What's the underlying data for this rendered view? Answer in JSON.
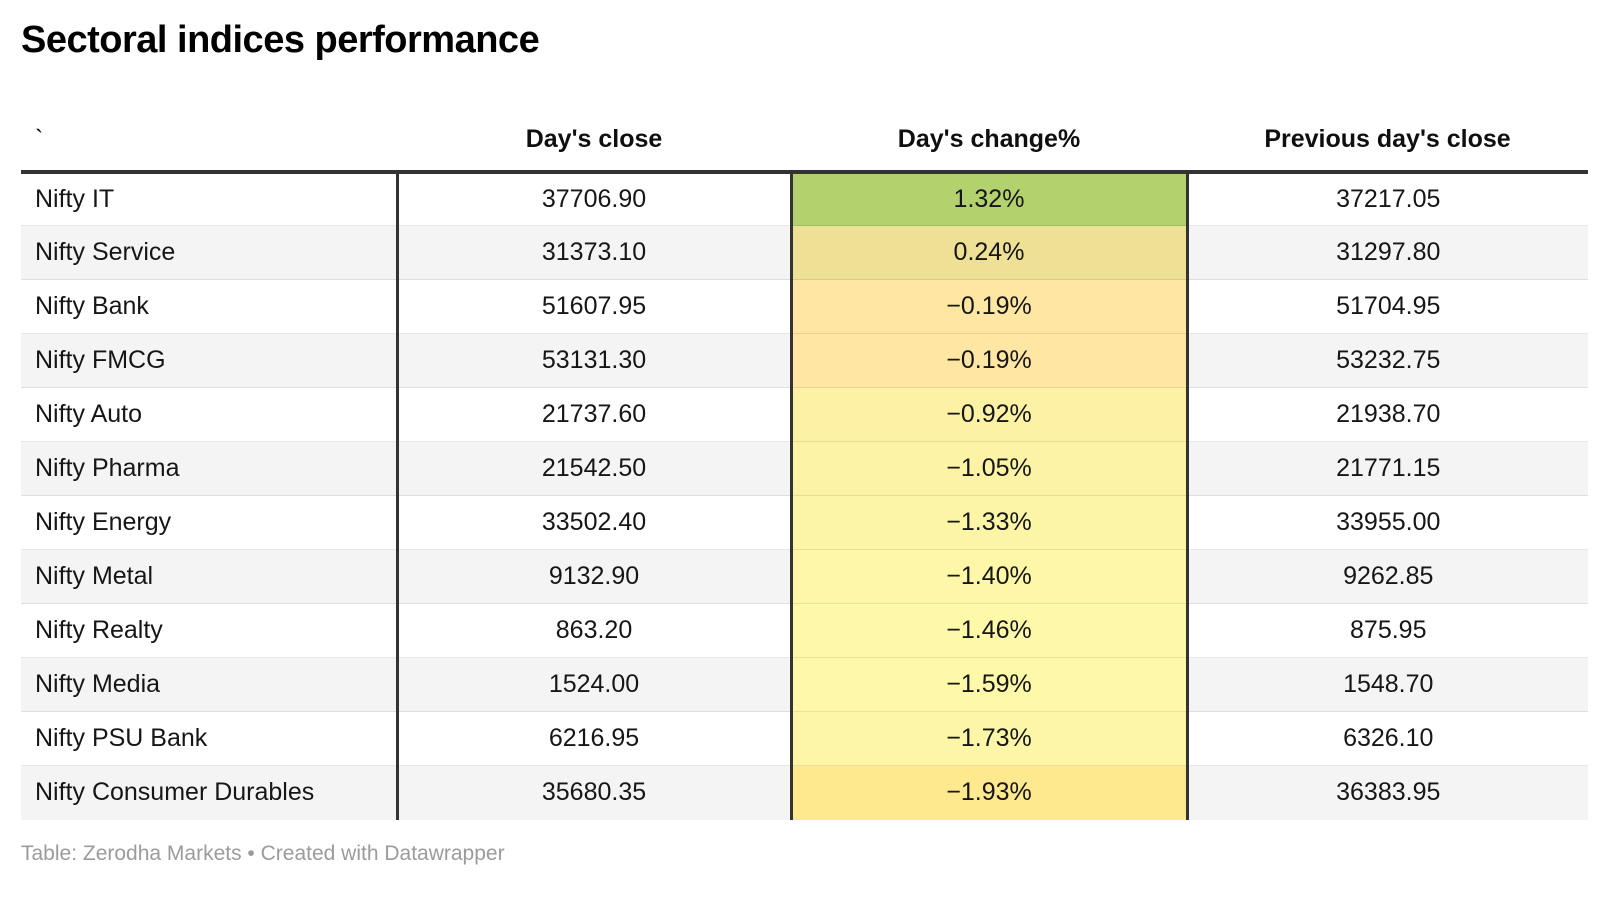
{
  "title": "Sectoral indices performance",
  "table": {
    "columns": {
      "name": "`",
      "close": "Day's close",
      "change": "Day's change%",
      "prev": "Previous day's close"
    },
    "rows": [
      {
        "name": "Nifty IT",
        "close": "37706.90",
        "change": "1.32%",
        "prev": "37217.05",
        "color": "#b3d16c"
      },
      {
        "name": "Nifty Service",
        "close": "31373.10",
        "change": "0.24%",
        "prev": "31297.80",
        "color": "#eee095"
      },
      {
        "name": "Nifty Bank",
        "close": "51607.95",
        "change": "−0.19%",
        "prev": "51704.95",
        "color": "#ffe6a2"
      },
      {
        "name": "Nifty FMCG",
        "close": "53131.30",
        "change": "−0.19%",
        "prev": "53232.75",
        "color": "#ffe6a2"
      },
      {
        "name": "Nifty Auto",
        "close": "21737.60",
        "change": "−0.92%",
        "prev": "21938.70",
        "color": "#fdf2a3"
      },
      {
        "name": "Nifty Pharma",
        "close": "21542.50",
        "change": "−1.05%",
        "prev": "21771.15",
        "color": "#fdf3a4"
      },
      {
        "name": "Nifty Energy",
        "close": "33502.40",
        "change": "−1.33%",
        "prev": "33955.00",
        "color": "#fdf5a6"
      },
      {
        "name": "Nifty Metal",
        "close": "9132.90",
        "change": "−1.40%",
        "prev": "9262.85",
        "color": "#fef7a8"
      },
      {
        "name": "Nifty Realty",
        "close": "863.20",
        "change": "−1.46%",
        "prev": "875.95",
        "color": "#fef8a9"
      },
      {
        "name": "Nifty Media",
        "close": "1524.00",
        "change": "−1.59%",
        "prev": "1548.70",
        "color": "#fef8a9"
      },
      {
        "name": "Nifty PSU Bank",
        "close": "6216.95",
        "change": "−1.73%",
        "prev": "6326.10",
        "color": "#fdf6a6"
      },
      {
        "name": "Nifty Consumer Durables",
        "close": "35680.35",
        "change": "−1.93%",
        "prev": "36383.95",
        "color": "#ffe98f"
      }
    ]
  },
  "footer": {
    "text": "Table: Zerodha Markets • Created with Datawrapper"
  },
  "chart_data": {
    "type": "table",
    "title": "Sectoral indices performance",
    "columns": [
      "`",
      "Day's close",
      "Day's change%",
      "Previous day's close"
    ],
    "rows": [
      [
        "Nifty IT",
        37706.9,
        1.32,
        37217.05
      ],
      [
        "Nifty Service",
        31373.1,
        0.24,
        31297.8
      ],
      [
        "Nifty Bank",
        51607.95,
        -0.19,
        51704.95
      ],
      [
        "Nifty FMCG",
        53131.3,
        -0.19,
        53232.75
      ],
      [
        "Nifty Auto",
        21737.6,
        -0.92,
        21938.7
      ],
      [
        "Nifty Pharma",
        21542.5,
        -1.05,
        21771.15
      ],
      [
        "Nifty Energy",
        33502.4,
        -1.33,
        33955.0
      ],
      [
        "Nifty Metal",
        9132.9,
        -1.4,
        9262.85
      ],
      [
        "Nifty Realty",
        863.2,
        -1.46,
        875.95
      ],
      [
        "Nifty Media",
        1524.0,
        -1.59,
        1548.7
      ],
      [
        "Nifty PSU Bank",
        6216.95,
        -1.73,
        6326.1
      ],
      [
        "Nifty Consumer Durables",
        35680.35,
        -1.93,
        36383.95
      ]
    ],
    "heatmap_column": "Day's change%",
    "heatmap_colors": [
      "#b3d16c",
      "#eee095",
      "#ffe6a2",
      "#ffe6a2",
      "#fdf2a3",
      "#fdf3a4",
      "#fdf5a6",
      "#fef7a8",
      "#fef8a9",
      "#fef8a9",
      "#fdf6a6",
      "#ffe98f"
    ],
    "source": "Table: Zerodha Markets • Created with Datawrapper"
  }
}
